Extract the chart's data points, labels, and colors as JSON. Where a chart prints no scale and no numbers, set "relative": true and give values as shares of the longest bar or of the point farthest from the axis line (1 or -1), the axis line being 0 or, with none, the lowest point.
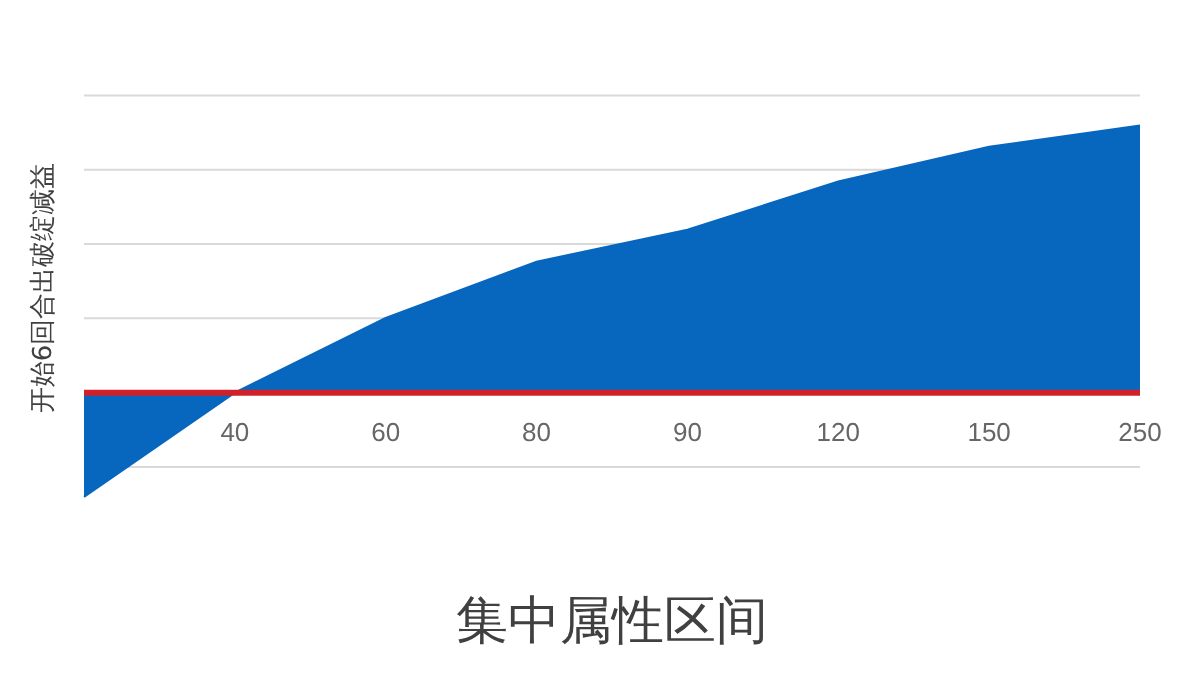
{
  "chart_data": {
    "type": "area",
    "relative": true,
    "xlabel": "集中属性区间",
    "ylabel": "开始6回合出破绽减益",
    "categories": [
      null,
      "40",
      "60",
      "80",
      "90",
      "120",
      "150",
      "250"
    ],
    "values": [
      -0.39,
      0,
      0.28,
      0.49,
      0.61,
      0.79,
      0.92,
      1
    ],
    "color": "#0766be",
    "grid": "y"
  }
}
